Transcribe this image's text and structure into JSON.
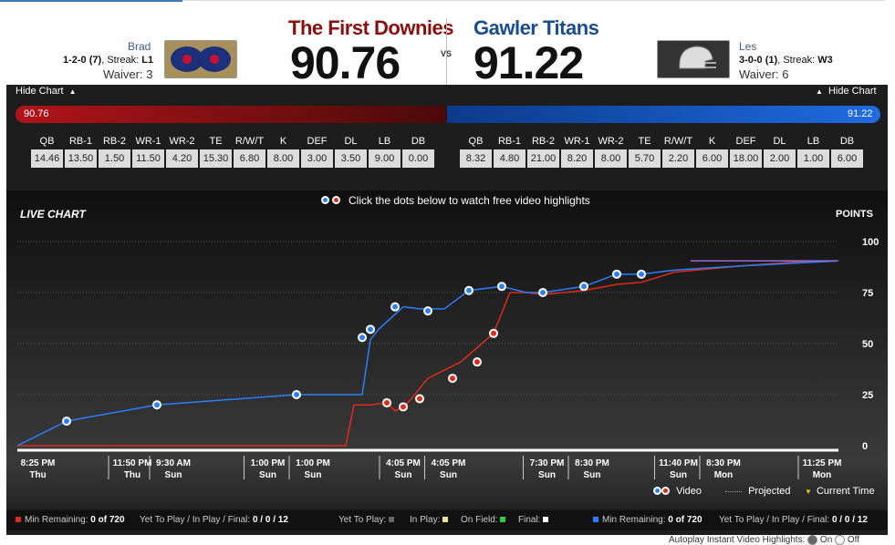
{
  "home": {
    "team_name": "The First Downies",
    "score": "90.76",
    "owner": "Brad",
    "record_prefix": "1-2-0",
    "record_rank": "(7)",
    "streak_label": ", Streak:",
    "streak": "L1",
    "waiver": "Waiver: 3",
    "bar_value": "90.76",
    "color": "#8b0d0d",
    "positions": [
      "QB",
      "RB-1",
      "RB-2",
      "WR-1",
      "WR-2",
      "TE",
      "R/W/T",
      "K",
      "DEF",
      "DL",
      "LB",
      "DB"
    ],
    "values": [
      "14.46",
      "13.50",
      "1.50",
      "11.50",
      "4.20",
      "15.30",
      "6.80",
      "8.00",
      "3.00",
      "3.50",
      "9.00",
      "0.00"
    ],
    "min_remaining_label": "Min Remaining:",
    "min_remaining": "0 of 720",
    "ytp_label": "Yet To Play / In Play / Final:",
    "ytp": "0 / 0 / 12"
  },
  "vs": "VS",
  "away": {
    "team_name": "Gawler Titans",
    "score": "91.22",
    "owner": "Les",
    "record_prefix": "3-0-0",
    "record_rank": "(1)",
    "streak_label": ", Streak:",
    "streak": "W3",
    "waiver": "Waiver: 6",
    "bar_value": "91.22",
    "color": "#1a4d8f",
    "positions": [
      "QB",
      "RB-1",
      "RB-2",
      "WR-1",
      "WR-2",
      "TE",
      "R/W/T",
      "K",
      "DEF",
      "DL",
      "LB",
      "DB"
    ],
    "values": [
      "8.32",
      "4.80",
      "21.00",
      "8.20",
      "8.00",
      "5.70",
      "2.20",
      "6.00",
      "18.00",
      "2.00",
      "1.00",
      "6.00"
    ],
    "min_remaining_label": "Min Remaining:",
    "min_remaining": "0 of 720",
    "ytp_label": "Yet To Play / In Play / Final:",
    "ytp": "0 / 0 / 12"
  },
  "hide_chart_label": "Hide Chart",
  "hint": "Click the dots below to watch free video highlights",
  "live_chart_label": "LIVE CHART",
  "points_label": "POINTS",
  "legend": {
    "video": "Video",
    "projected": "Projected",
    "current_time": "Current Time"
  },
  "footer_mid": {
    "yet_to_play": "Yet To Play:",
    "in_play": "In Play:",
    "on_field": "On Field:",
    "final": "Final:"
  },
  "autoplay_label": "Autoplay Instant Video Highlights:",
  "autoplay_on": "On",
  "autoplay_off": "Off",
  "chart_data": {
    "type": "line",
    "ylim": [
      0,
      100
    ],
    "y_ticks": [
      "100",
      "75",
      "50",
      "25",
      "0"
    ],
    "x_ticks": [
      {
        "time": "8:25 PM",
        "day": "Thu"
      },
      {
        "time": "11:50 PM",
        "day": "Thu"
      },
      {
        "time": "9:30 AM",
        "day": "Sun"
      },
      {
        "time": "1:00 PM",
        "day": "Sun"
      },
      {
        "time": "1:00 PM",
        "day": "Sun"
      },
      {
        "time": "4:05 PM",
        "day": "Sun"
      },
      {
        "time": "4:05 PM",
        "day": "Sun"
      },
      {
        "time": "7:30 PM",
        "day": "Sun"
      },
      {
        "time": "8:30 PM",
        "day": "Sun"
      },
      {
        "time": "11:40 PM",
        "day": "Sun"
      },
      {
        "time": "8:30 PM",
        "day": "Mon"
      },
      {
        "time": "11:25 PM",
        "day": "Mon"
      }
    ],
    "series": [
      {
        "color": "#2a7fff",
        "x": [
          0,
          0.06,
          0.17,
          0.34,
          0.42,
          0.43,
          0.44,
          0.47,
          0.49,
          0.52,
          0.55,
          0.59,
          0.62,
          0.64,
          0.69,
          0.73,
          0.76,
          0.8,
          0.88,
          1.0
        ],
        "values": [
          0,
          12,
          20,
          25,
          25,
          52,
          57,
          68,
          67,
          67,
          76,
          78,
          75,
          75,
          78,
          84,
          84,
          86,
          88,
          90.5
        ],
        "dots_x": [
          0.06,
          0.17,
          0.34,
          0.42,
          0.43,
          0.46,
          0.5,
          0.55,
          0.59,
          0.64,
          0.69,
          0.73,
          0.76
        ],
        "dots_y": [
          12,
          20,
          25,
          53,
          57,
          68,
          66,
          76,
          78,
          75,
          78,
          84,
          84
        ]
      },
      {
        "color": "#e02a18",
        "x": [
          0,
          0.4,
          0.41,
          0.43,
          0.45,
          0.46,
          0.47,
          0.48,
          0.5,
          0.54,
          0.56,
          0.58,
          0.6,
          0.62,
          0.64,
          0.69,
          0.73,
          0.76,
          0.8,
          0.88,
          0.95,
          1.0
        ],
        "values": [
          0,
          0,
          20,
          20,
          21,
          17,
          19,
          23,
          33,
          41,
          48,
          55,
          75,
          75,
          74,
          76,
          79,
          80,
          85,
          88,
          90,
          90.5
        ],
        "dots_x": [
          0.45,
          0.47,
          0.49,
          0.53,
          0.56,
          0.58
        ],
        "dots_y": [
          21,
          19,
          23,
          33,
          41,
          55
        ]
      }
    ]
  }
}
